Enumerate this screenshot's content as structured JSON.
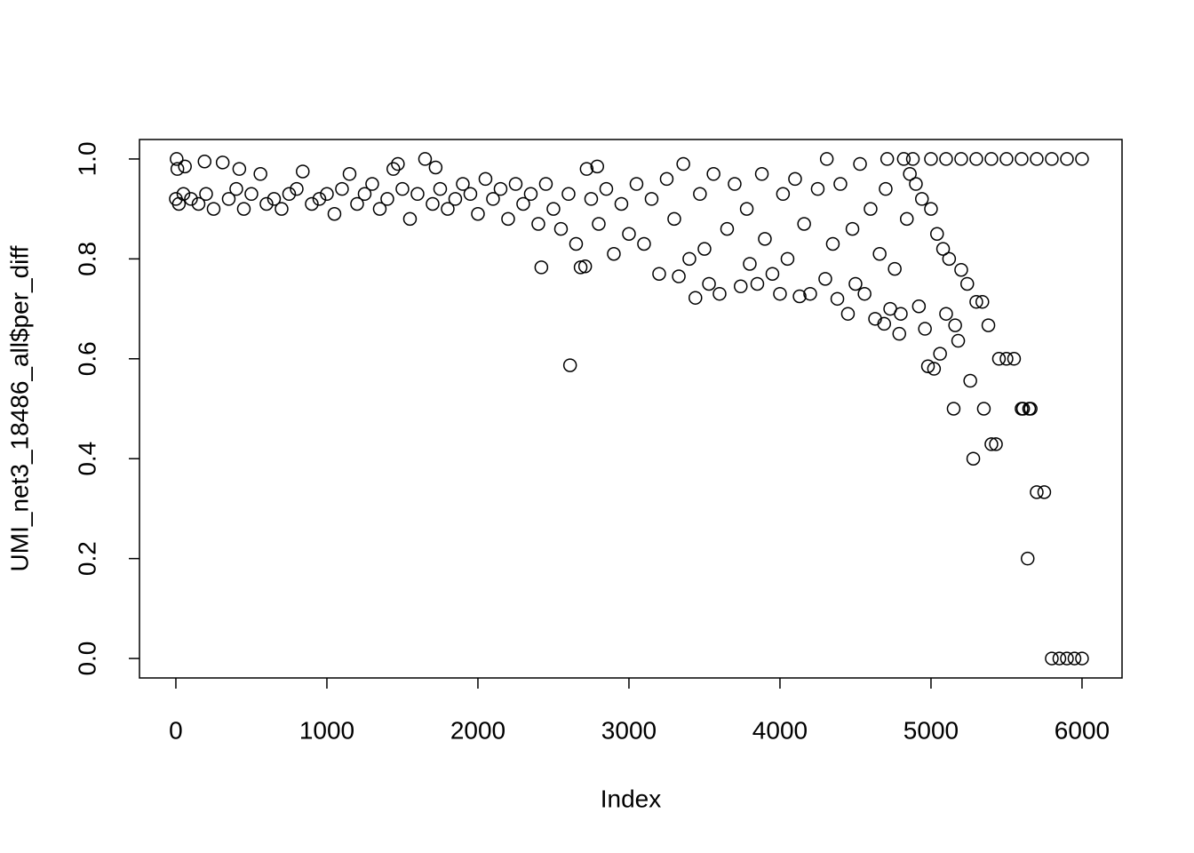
{
  "chart_data": {
    "type": "scatter",
    "x_label": "Index",
    "y_label": "UMI_net3_18486_all$per_diff",
    "xlim": [
      -241,
      6265
    ],
    "ylim": [
      -0.039,
      1.039
    ],
    "xticks": [
      0,
      1000,
      2000,
      3000,
      4000,
      5000,
      6000
    ],
    "yticks": [
      {
        "value": 0,
        "label": "0.0"
      },
      0.2,
      0.4,
      0.6,
      0.8,
      {
        "value": 1,
        "label": "1.0"
      }
    ],
    "color": "#000000",
    "x": [
      0,
      5,
      10,
      20,
      50,
      60,
      100,
      150,
      190,
      200,
      250,
      310,
      350,
      400,
      420,
      450,
      500,
      560,
      600,
      650,
      700,
      750,
      800,
      840,
      900,
      950,
      1000,
      1050,
      1100,
      1150,
      1200,
      1250,
      1300,
      1350,
      1400,
      1440,
      1470,
      1500,
      1550,
      1600,
      1650,
      1700,
      1720,
      1750,
      1800,
      1850,
      1900,
      1950,
      2000,
      2050,
      2100,
      2150,
      2200,
      2250,
      2300,
      2350,
      2400,
      2420,
      2450,
      2500,
      2550,
      2600,
      2610,
      2650,
      2680,
      2710,
      2720,
      2750,
      2790,
      2800,
      2850,
      2900,
      2950,
      3000,
      3050,
      3100,
      3150,
      3200,
      3250,
      3300,
      3330,
      3360,
      3400,
      3440,
      3470,
      3500,
      3530,
      3560,
      3600,
      3650,
      3700,
      3740,
      3780,
      3800,
      3850,
      3880,
      3900,
      3950,
      4000,
      4020,
      4050,
      4100,
      4130,
      4160,
      4200,
      4250,
      4300,
      4310,
      4350,
      4380,
      4400,
      4450,
      4480,
      4500,
      4530,
      4560,
      4600,
      4630,
      4660,
      4690,
      4700,
      4710,
      4730,
      4760,
      4790,
      4800,
      4820,
      4840,
      4860,
      4880,
      4900,
      4920,
      4940,
      4960,
      4980,
      5000,
      5000,
      5020,
      5040,
      5060,
      5080,
      5100,
      5100,
      5120,
      5150,
      5160,
      5180,
      5200,
      5200,
      5240,
      5260,
      5280,
      5300,
      5300,
      5340,
      5350,
      5380,
      5400,
      5400,
      5430,
      5450,
      5500,
      5500,
      5550,
      5600,
      5600,
      5610,
      5640,
      5650,
      5660,
      5700,
      5700,
      5750,
      5800,
      5800,
      5850,
      5900,
      5900,
      5950,
      6000,
      6000
    ],
    "values": [
      0.92,
      1.0,
      0.98,
      0.91,
      0.93,
      0.985,
      0.92,
      0.91,
      0.995,
      0.93,
      0.9,
      0.993,
      0.92,
      0.94,
      0.98,
      0.9,
      0.93,
      0.97,
      0.91,
      0.92,
      0.9,
      0.93,
      0.94,
      0.975,
      0.91,
      0.92,
      0.93,
      0.89,
      0.94,
      0.97,
      0.91,
      0.93,
      0.95,
      0.9,
      0.92,
      0.98,
      0.99,
      0.94,
      0.88,
      0.93,
      1.0,
      0.91,
      0.983,
      0.94,
      0.9,
      0.92,
      0.95,
      0.93,
      0.89,
      0.96,
      0.92,
      0.94,
      0.88,
      0.95,
      0.91,
      0.93,
      0.87,
      0.783,
      0.95,
      0.9,
      0.86,
      0.93,
      0.587,
      0.83,
      0.783,
      0.785,
      0.98,
      0.92,
      0.985,
      0.87,
      0.94,
      0.81,
      0.91,
      0.85,
      0.95,
      0.83,
      0.92,
      0.77,
      0.96,
      0.88,
      0.765,
      0.99,
      0.8,
      0.722,
      0.93,
      0.82,
      0.75,
      0.97,
      0.73,
      0.86,
      0.95,
      0.745,
      0.9,
      0.79,
      0.75,
      0.97,
      0.84,
      0.77,
      0.73,
      0.93,
      0.8,
      0.96,
      0.725,
      0.87,
      0.73,
      0.94,
      0.76,
      1.0,
      0.83,
      0.72,
      0.95,
      0.69,
      0.86,
      0.75,
      0.99,
      0.73,
      0.9,
      0.68,
      0.81,
      0.67,
      0.94,
      1.0,
      0.7,
      0.78,
      0.65,
      0.69,
      1.0,
      0.88,
      0.97,
      1.0,
      0.95,
      0.705,
      0.92,
      0.66,
      0.585,
      0.9,
      1.0,
      0.58,
      0.85,
      0.61,
      0.82,
      0.69,
      1.0,
      0.8,
      0.5,
      0.667,
      0.636,
      0.778,
      1.0,
      0.75,
      0.556,
      0.4,
      0.714,
      1.0,
      0.714,
      0.5,
      0.667,
      0.429,
      1.0,
      0.429,
      0.6,
      0.6,
      1.0,
      0.6,
      0.5,
      1.0,
      0.5,
      0.2,
      0.5,
      0.5,
      0.333,
      1.0,
      0.333,
      0,
      1.0,
      0,
      0,
      1.0,
      0,
      0,
      1.0
    ]
  }
}
